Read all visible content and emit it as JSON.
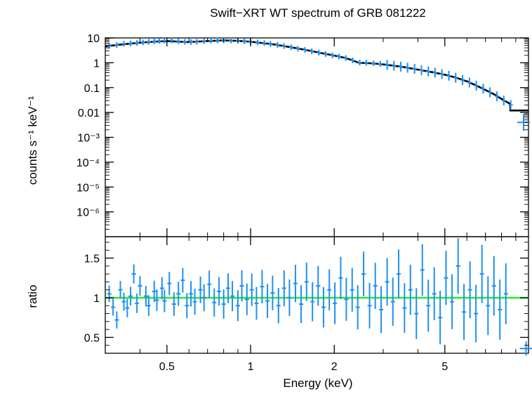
{
  "chart_data": [
    {
      "type": "scatter",
      "title": "Swift−XRT WT spectrum of GRB 081222",
      "ylabel": "counts s⁻¹ keV⁻¹",
      "xlabel": "",
      "xscale": "log",
      "yscale": "log",
      "xlim": [
        0.3,
        10
      ],
      "ylim": [
        1e-07,
        10
      ],
      "x_ticks": [],
      "y_ticks": [
        {
          "value": 10,
          "label": "10"
        },
        {
          "value": 1,
          "label": "1"
        },
        {
          "value": 0.1,
          "label": "0.1"
        },
        {
          "value": 0.01,
          "label": "0.01"
        },
        {
          "value": 0.001,
          "label": "10⁻³"
        },
        {
          "value": 0.0001,
          "label": "10⁻⁴"
        },
        {
          "value": 1e-05,
          "label": "10⁻⁵"
        },
        {
          "value": 1e-06,
          "label": "10⁻⁶"
        }
      ],
      "colors": {
        "data": "#1f8ff0",
        "model": "#000000"
      },
      "series": [
        {
          "kind": "data",
          "points": [
            [
              0.31,
              4.8
            ],
            [
              0.33,
              5.2
            ],
            [
              0.35,
              5.8
            ],
            [
              0.37,
              6.0
            ],
            [
              0.39,
              6.3
            ],
            [
              0.41,
              6.6
            ],
            [
              0.43,
              7.0
            ],
            [
              0.45,
              7.3
            ],
            [
              0.47,
              7.6
            ],
            [
              0.49,
              7.8
            ],
            [
              0.52,
              7.9
            ],
            [
              0.55,
              7.4
            ],
            [
              0.58,
              7.0
            ],
            [
              0.61,
              6.8
            ],
            [
              0.64,
              7.0
            ],
            [
              0.68,
              7.4
            ],
            [
              0.72,
              7.8
            ],
            [
              0.76,
              8.0
            ],
            [
              0.8,
              8.0
            ],
            [
              0.85,
              7.9
            ],
            [
              0.9,
              7.6
            ],
            [
              0.95,
              7.3
            ],
            [
              1.0,
              7.0
            ],
            [
              1.06,
              6.6
            ],
            [
              1.12,
              6.2
            ],
            [
              1.18,
              5.7
            ],
            [
              1.25,
              5.2
            ],
            [
              1.32,
              4.7
            ],
            [
              1.4,
              4.2
            ],
            [
              1.48,
              3.7
            ],
            [
              1.57,
              3.3
            ],
            [
              1.66,
              2.9
            ],
            [
              1.76,
              2.55
            ],
            [
              1.86,
              2.25
            ],
            [
              1.97,
              2.0
            ],
            [
              2.08,
              1.78
            ],
            [
              2.2,
              1.55
            ],
            [
              2.33,
              1.25
            ],
            [
              2.47,
              1.02
            ],
            [
              2.61,
              1.0
            ],
            [
              2.77,
              0.95
            ],
            [
              2.93,
              0.9
            ],
            [
              3.1,
              0.82
            ],
            [
              3.28,
              0.76
            ],
            [
              3.47,
              0.7
            ],
            [
              3.67,
              0.63
            ],
            [
              3.89,
              0.57
            ],
            [
              4.12,
              0.5
            ],
            [
              4.36,
              0.45
            ],
            [
              4.61,
              0.4
            ],
            [
              4.88,
              0.35
            ],
            [
              5.17,
              0.3
            ],
            [
              5.47,
              0.25
            ],
            [
              5.79,
              0.2
            ],
            [
              6.13,
              0.16
            ],
            [
              6.49,
              0.12
            ],
            [
              6.87,
              0.09
            ],
            [
              7.27,
              0.065
            ],
            [
              7.7,
              0.045
            ],
            [
              8.15,
              0.03
            ],
            [
              8.63,
              0.02
            ],
            [
              9.6,
              0.004
            ]
          ]
        },
        {
          "kind": "model",
          "points": [
            [
              0.3,
              4.6
            ],
            [
              0.35,
              5.6
            ],
            [
              0.4,
              6.4
            ],
            [
              0.45,
              7.1
            ],
            [
              0.5,
              7.5
            ],
            [
              0.55,
              7.1
            ],
            [
              0.6,
              6.8
            ],
            [
              0.7,
              7.5
            ],
            [
              0.8,
              8.0
            ],
            [
              0.9,
              7.6
            ],
            [
              1.0,
              7.0
            ],
            [
              1.2,
              5.6
            ],
            [
              1.4,
              4.2
            ],
            [
              1.6,
              3.2
            ],
            [
              1.8,
              2.45
            ],
            [
              2.0,
              1.95
            ],
            [
              2.2,
              1.55
            ],
            [
              2.35,
              1.2
            ],
            [
              2.45,
              1.0
            ],
            [
              2.6,
              0.98
            ],
            [
              2.8,
              0.93
            ],
            [
              3.0,
              0.86
            ],
            [
              3.5,
              0.69
            ],
            [
              4.0,
              0.53
            ],
            [
              4.5,
              0.42
            ],
            [
              5.0,
              0.33
            ],
            [
              5.5,
              0.25
            ],
            [
              6.0,
              0.18
            ],
            [
              6.5,
              0.12
            ],
            [
              7.0,
              0.08
            ],
            [
              7.5,
              0.055
            ],
            [
              8.0,
              0.035
            ],
            [
              8.6,
              0.022
            ],
            [
              8.6,
              0.012
            ],
            [
              10.0,
              0.012
            ]
          ]
        }
      ]
    },
    {
      "type": "scatter",
      "title": "",
      "ylabel": "ratio",
      "xlabel": "Energy (keV)",
      "xscale": "log",
      "yscale": "linear",
      "xlim": [
        0.3,
        10
      ],
      "ylim": [
        0.3,
        1.77
      ],
      "x_ticks": [
        {
          "value": 0.5,
          "label": "0.5"
        },
        {
          "value": 1,
          "label": "1"
        },
        {
          "value": 2,
          "label": "2"
        },
        {
          "value": 5,
          "label": "5"
        }
      ],
      "y_ticks": [
        {
          "value": 0.5,
          "label": "0.5"
        },
        {
          "value": 1,
          "label": "1"
        },
        {
          "value": 1.5,
          "label": "1.5"
        }
      ],
      "reference_line": {
        "y": 1,
        "color": "#22ee22"
      },
      "colors": {
        "data": "#1f8ff0"
      },
      "series": [
        {
          "kind": "data",
          "points": [
            [
              0.31,
              1.05
            ],
            [
              0.32,
              0.88
            ],
            [
              0.33,
              0.72
            ],
            [
              0.34,
              1.1
            ],
            [
              0.35,
              0.95
            ],
            [
              0.36,
              0.87
            ],
            [
              0.37,
              1.02
            ],
            [
              0.38,
              1.3
            ],
            [
              0.39,
              0.93
            ],
            [
              0.4,
              1.15
            ],
            [
              0.42,
              1.02
            ],
            [
              0.43,
              0.9
            ],
            [
              0.45,
              1.08
            ],
            [
              0.46,
              0.97
            ],
            [
              0.48,
              1.12
            ],
            [
              0.49,
              0.96
            ],
            [
              0.51,
              1.18
            ],
            [
              0.53,
              0.92
            ],
            [
              0.55,
              1.05
            ],
            [
              0.57,
              1.22
            ],
            [
              0.59,
              0.9
            ],
            [
              0.61,
              1.05
            ],
            [
              0.63,
              0.95
            ],
            [
              0.66,
              1.1
            ],
            [
              0.68,
              1.0
            ],
            [
              0.71,
              1.17
            ],
            [
              0.74,
              0.94
            ],
            [
              0.77,
              1.08
            ],
            [
              0.8,
              0.92
            ],
            [
              0.83,
              1.12
            ],
            [
              0.86,
              1.02
            ],
            [
              0.9,
              0.9
            ],
            [
              0.93,
              1.15
            ],
            [
              0.97,
              0.98
            ],
            [
              1.01,
              1.1
            ],
            [
              1.05,
              0.93
            ],
            [
              1.1,
              1.14
            ],
            [
              1.15,
              0.96
            ],
            [
              1.2,
              1.06
            ],
            [
              1.26,
              0.9
            ],
            [
              1.32,
              1.12
            ],
            [
              1.38,
              1.0
            ],
            [
              1.45,
              1.18
            ],
            [
              1.52,
              0.92
            ],
            [
              1.59,
              1.2
            ],
            [
              1.67,
              0.95
            ],
            [
              1.75,
              1.15
            ],
            [
              1.83,
              0.88
            ],
            [
              1.92,
              1.1
            ],
            [
              2.01,
              0.93
            ],
            [
              2.11,
              1.25
            ],
            [
              2.21,
              0.98
            ],
            [
              2.32,
              1.1
            ],
            [
              2.43,
              0.88
            ],
            [
              2.55,
              1.3
            ],
            [
              2.68,
              0.9
            ],
            [
              2.81,
              1.15
            ],
            [
              2.95,
              0.85
            ],
            [
              3.1,
              1.2
            ],
            [
              3.25,
              0.95
            ],
            [
              3.41,
              1.3
            ],
            [
              3.58,
              0.87
            ],
            [
              3.76,
              1.1
            ],
            [
              3.95,
              0.8
            ],
            [
              4.15,
              1.35
            ],
            [
              4.36,
              0.9
            ],
            [
              4.58,
              1.05
            ],
            [
              4.81,
              0.75
            ],
            [
              5.05,
              1.25
            ],
            [
              5.31,
              0.95
            ],
            [
              5.58,
              1.4
            ],
            [
              5.86,
              0.82
            ],
            [
              6.16,
              1.1
            ],
            [
              6.47,
              0.8
            ],
            [
              6.8,
              1.3
            ],
            [
              7.15,
              0.9
            ],
            [
              7.51,
              1.15
            ],
            [
              7.89,
              0.85
            ],
            [
              8.29,
              1.05
            ],
            [
              9.8,
              0.36
            ]
          ]
        }
      ]
    }
  ]
}
